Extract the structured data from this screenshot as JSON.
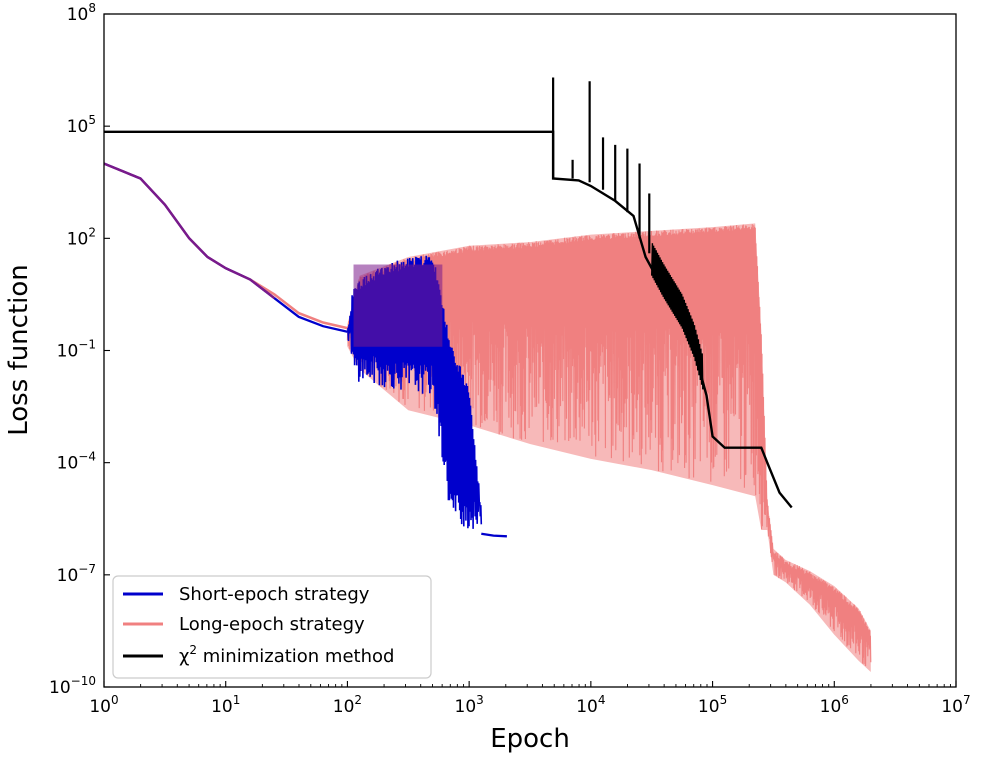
{
  "chart_data": {
    "type": "line",
    "xlabel": "Epoch",
    "ylabel": "Loss function",
    "xscale": "log",
    "yscale": "log",
    "xlim_exp": [
      0,
      7
    ],
    "ylim_exp": [
      -10,
      8
    ],
    "x_ticks": [
      {
        "base": "10",
        "exp": "0",
        "value": 0
      },
      {
        "base": "10",
        "exp": "1",
        "value": 1
      },
      {
        "base": "10",
        "exp": "2",
        "value": 2
      },
      {
        "base": "10",
        "exp": "3",
        "value": 3
      },
      {
        "base": "10",
        "exp": "4",
        "value": 4
      },
      {
        "base": "10",
        "exp": "5",
        "value": 5
      },
      {
        "base": "10",
        "exp": "6",
        "value": 6
      },
      {
        "base": "10",
        "exp": "7",
        "value": 7
      }
    ],
    "y_ticks": [
      {
        "base": "10",
        "exp": "8",
        "value": 8
      },
      {
        "base": "10",
        "exp": "5",
        "value": 5
      },
      {
        "base": "10",
        "exp": "2",
        "value": 2
      },
      {
        "base": "10",
        "exp": "−1",
        "value": -1
      },
      {
        "base": "10",
        "exp": "−4",
        "value": -4
      },
      {
        "base": "10",
        "exp": "−7",
        "value": -7
      },
      {
        "base": "10",
        "exp": "−10",
        "value": -10
      }
    ],
    "legend_position": "bottom-left",
    "series": [
      {
        "name": "Short-epoch strategy",
        "color": "#0000cc",
        "note": "log10(epoch), log10(loss); oscillating region rendered as band",
        "line": [
          [
            0,
            4.0
          ],
          [
            0.3,
            3.6
          ],
          [
            0.5,
            2.9
          ],
          [
            0.7,
            2.0
          ],
          [
            0.85,
            1.5
          ],
          [
            1.0,
            1.2
          ],
          [
            1.2,
            0.9
          ],
          [
            1.4,
            0.4
          ],
          [
            1.6,
            -0.1
          ],
          [
            1.8,
            -0.35
          ],
          [
            2.0,
            -0.5
          ]
        ],
        "band": [
          [
            2.0,
            -0.6,
            -0.4
          ],
          [
            2.05,
            -1.8,
            0.8
          ],
          [
            2.3,
            -2.0,
            1.3
          ],
          [
            2.5,
            -2.1,
            1.5
          ],
          [
            2.7,
            -2.2,
            1.6
          ],
          [
            2.85,
            -5.5,
            -0.8
          ],
          [
            3.0,
            -5.8,
            -2.0
          ],
          [
            3.1,
            -5.9,
            -5.2
          ]
        ],
        "tail": [
          [
            3.1,
            -5.9
          ],
          [
            3.2,
            -5.95
          ],
          [
            3.31,
            -5.97
          ]
        ]
      },
      {
        "name": "Long-epoch strategy",
        "color": "#f08080",
        "line": [
          [
            0,
            4.0
          ],
          [
            0.3,
            3.6
          ],
          [
            0.5,
            2.9
          ],
          [
            0.7,
            2.0
          ],
          [
            0.85,
            1.5
          ],
          [
            1.0,
            1.2
          ],
          [
            1.2,
            0.9
          ],
          [
            1.4,
            0.5
          ],
          [
            1.6,
            0.0
          ],
          [
            1.8,
            -0.25
          ],
          [
            2.0,
            -0.4
          ]
        ],
        "band": [
          [
            2.0,
            -0.9,
            -0.3
          ],
          [
            2.1,
            -1.5,
            1.0
          ],
          [
            2.5,
            -2.6,
            1.5
          ],
          [
            3.0,
            -3.0,
            1.8
          ],
          [
            3.5,
            -3.5,
            1.9
          ],
          [
            4.0,
            -3.9,
            2.1
          ],
          [
            4.5,
            -4.2,
            2.2
          ],
          [
            5.0,
            -4.6,
            2.3
          ],
          [
            5.35,
            -4.9,
            2.4
          ],
          [
            5.4,
            -5.8,
            -0.5
          ],
          [
            5.45,
            -5.8,
            -5.0
          ],
          [
            5.5,
            -7.0,
            -6.3
          ],
          [
            5.6,
            -7.2,
            -6.6
          ],
          [
            5.8,
            -7.8,
            -6.9
          ],
          [
            6.0,
            -8.6,
            -7.3
          ],
          [
            6.2,
            -9.3,
            -7.9
          ],
          [
            6.3,
            -9.6,
            -8.5
          ]
        ]
      },
      {
        "name": "χ² minimization method",
        "legend_base": "χ",
        "legend_sup": "2",
        "legend_rest": " minimization method",
        "color": "#000000",
        "line": [
          [
            0,
            4.85
          ],
          [
            3.69,
            4.85
          ],
          [
            3.69,
            3.6
          ],
          [
            3.9,
            3.55
          ],
          [
            4.0,
            3.4
          ],
          [
            4.2,
            3.0
          ],
          [
            4.35,
            2.6
          ],
          [
            4.45,
            1.5
          ],
          [
            4.6,
            0.6
          ],
          [
            4.75,
            -0.2
          ],
          [
            4.85,
            -1.0
          ],
          [
            4.95,
            -2.2
          ],
          [
            5.0,
            -3.3
          ],
          [
            5.1,
            -3.6
          ],
          [
            5.4,
            -3.6
          ],
          [
            5.45,
            -4.0
          ],
          [
            5.55,
            -4.8
          ],
          [
            5.65,
            -5.2
          ]
        ],
        "spikes": [
          [
            3.69,
            3.6,
            6.3
          ],
          [
            3.85,
            3.6,
            4.1
          ],
          [
            3.99,
            3.5,
            6.2
          ],
          [
            4.1,
            3.3,
            4.7
          ],
          [
            4.2,
            3.0,
            4.5
          ],
          [
            4.3,
            2.7,
            4.4
          ],
          [
            4.4,
            2.0,
            4.0
          ],
          [
            4.48,
            1.6,
            3.2
          ]
        ]
      }
    ]
  }
}
